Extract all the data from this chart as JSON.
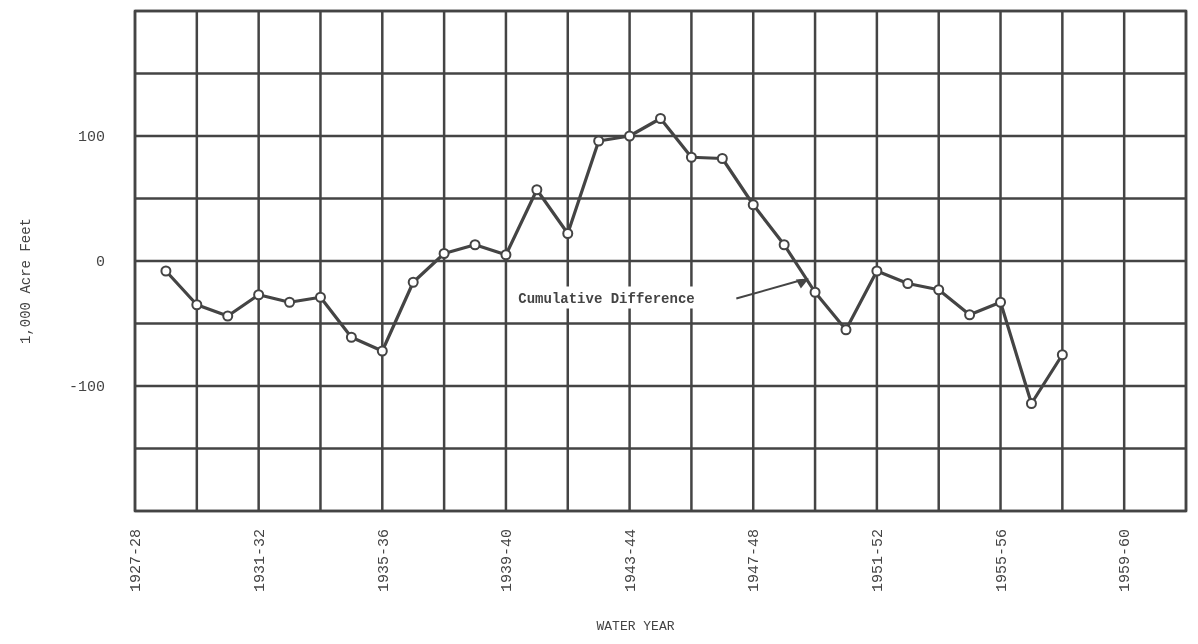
{
  "chart_data": {
    "type": "line",
    "xlabel": "WATER YEAR",
    "ylabel": "1,000 Acre Feet",
    "categories": [
      "1927-28",
      null,
      null,
      null,
      "1931-32",
      null,
      null,
      null,
      "1935-36",
      null,
      null,
      null,
      "1939-40",
      null,
      null,
      null,
      "1943-44",
      null,
      null,
      null,
      "1947-48",
      null,
      null,
      null,
      "1951-52",
      null,
      null,
      null,
      "1955-56",
      null,
      null,
      null,
      "1959-60",
      null,
      null
    ],
    "series": [
      {
        "color": "#444444",
        "values": [
          null,
          -8,
          -35,
          -44,
          -27,
          -33,
          -29,
          -61,
          -72,
          -17,
          6,
          13,
          5,
          57,
          22,
          96,
          100,
          114,
          83,
          82,
          45,
          13,
          -25,
          -55,
          -8,
          -18,
          -23,
          -43,
          -33,
          -114,
          -75,
          null,
          null,
          null,
          null
        ]
      }
    ],
    "ylim": [
      -200,
      200
    ],
    "yticks": [
      {
        "value": -200,
        "label": null
      },
      {
        "value": -150,
        "label": null
      },
      -100,
      {
        "value": -50,
        "label": null
      },
      0,
      {
        "value": 50,
        "label": null
      },
      100,
      {
        "value": 150,
        "label": null
      },
      {
        "value": 200,
        "label": null
      }
    ],
    "grid": true,
    "marker": "circle",
    "line_style": "solid",
    "annotations": [
      "Cumulative Difference"
    ]
  }
}
